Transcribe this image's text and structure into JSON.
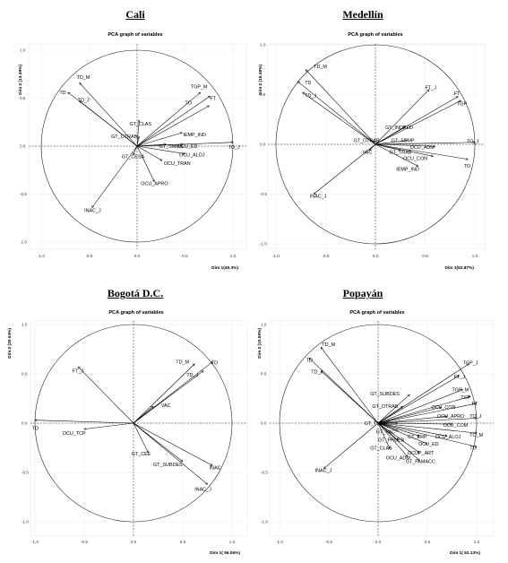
{
  "panels": [
    {
      "city": "Cali",
      "chart_data": {
        "type": "scatter",
        "title": "PCA graph of variables",
        "xlabel": "Dim 1(49.3%)",
        "ylabel": "Dim 2 (13.49%)",
        "xlim": [
          -1.0,
          1.0
        ],
        "ylim": [
          -1.0,
          1.0
        ],
        "ticks": [
          -1.0,
          -0.5,
          0.0,
          0.5,
          1.0
        ],
        "tick_labels": [
          "-1.0",
          "-0.5",
          "0.0",
          "0.5",
          "1.0"
        ],
        "vectors": [
          {
            "label": "TD_M",
            "x": -0.6,
            "y": 0.66,
            "lx": -0.63,
            "ly": 0.72
          },
          {
            "label": "TD",
            "x": -0.72,
            "y": 0.56,
            "lx": -0.81,
            "ly": 0.56
          },
          {
            "label": "TD_J",
            "x": -0.6,
            "y": 0.47,
            "lx": -0.62,
            "ly": 0.48
          },
          {
            "label": "TGP_M",
            "x": 0.66,
            "y": 0.56,
            "lx": 0.56,
            "ly": 0.62
          },
          {
            "label": "FT",
            "x": 0.76,
            "y": 0.52,
            "lx": 0.76,
            "ly": 0.5
          },
          {
            "label": "TO",
            "x": 0.75,
            "y": 0.42,
            "lx": 0.5,
            "ly": 0.45
          },
          {
            "label": "GT_CLAS",
            "x": 0.02,
            "y": 0.27,
            "lx": -0.08,
            "ly": 0.23
          },
          {
            "label": "IEMP_IND",
            "x": 0.47,
            "y": 0.14,
            "lx": 0.48,
            "ly": 0.12
          },
          {
            "label": "GT_OTRAB",
            "x": 0.02,
            "y": 0.1,
            "lx": -0.27,
            "ly": 0.1
          },
          {
            "label": "OCU_ED",
            "x": 0.48,
            "y": 0.02,
            "lx": 0.42,
            "ly": 0.0
          },
          {
            "label": "GT_SMMS",
            "x": 0.3,
            "y": 0.02,
            "lx": 0.23,
            "ly": 0.0
          },
          {
            "label": "OCU_ALOJ",
            "x": 0.5,
            "y": -0.08,
            "lx": 0.44,
            "ly": -0.09
          },
          {
            "label": "GT_CESA",
            "x": -0.04,
            "y": -0.09,
            "lx": -0.16,
            "ly": -0.11
          },
          {
            "label": "OCU_TRAN",
            "x": 0.26,
            "y": -0.15,
            "lx": 0.28,
            "ly": -0.18
          },
          {
            "label": "TO_J",
            "x": 1.0,
            "y": 0.04,
            "lx": 0.95,
            "ly": -0.01
          },
          {
            "label": "OCU_APRO",
            "x": 0.18,
            "y": -0.37,
            "lx": 0.04,
            "ly": -0.39
          },
          {
            "label": "INAC_J",
            "x": -0.47,
            "y": -0.64,
            "lx": -0.55,
            "ly": -0.67
          }
        ]
      }
    },
    {
      "city": "Medellín",
      "chart_data": {
        "type": "scatter",
        "title": "PCA graph of variables",
        "xlabel": "Dim 1(52.87%)",
        "ylabel": "Dim 2 (16.48%)",
        "xlim": [
          -1.0,
          1.0
        ],
        "ylim": [
          -1.0,
          1.0
        ],
        "ticks": [
          -1.0,
          -0.5,
          0.0,
          0.5,
          1.0
        ],
        "tick_labels": [
          "-1.0",
          "-0.5",
          "0.0",
          "0.5",
          "1.0"
        ],
        "vectors": [
          {
            "label": "TD_M",
            "x": -0.7,
            "y": 0.75,
            "lx": -0.62,
            "ly": 0.78
          },
          {
            "label": "TD",
            "x": -0.78,
            "y": 0.63,
            "lx": -0.71,
            "ly": 0.62
          },
          {
            "label": "TD_J",
            "x": -0.73,
            "y": 0.52,
            "lx": -0.71,
            "ly": 0.49
          },
          {
            "label": "FT_J",
            "x": 0.54,
            "y": 0.55,
            "lx": 0.5,
            "ly": 0.57
          },
          {
            "label": "FT",
            "x": 0.83,
            "y": 0.48,
            "lx": 0.79,
            "ly": 0.51
          },
          {
            "label": "TGP",
            "x": 0.86,
            "y": 0.44,
            "lx": 0.82,
            "ly": 0.41
          },
          {
            "label": "GT_INDEED",
            "x": 0.3,
            "y": 0.18,
            "lx": 0.1,
            "ly": 0.17
          },
          {
            "label": "GT_SEMP",
            "x": 0.32,
            "y": 0.04,
            "lx": 0.16,
            "ly": 0.04
          },
          {
            "label": "GT_OTRAB",
            "x": -0.02,
            "y": 0.04,
            "lx": -0.22,
            "ly": 0.04
          },
          {
            "label": "OCU_ADM",
            "x": 0.6,
            "y": -0.02,
            "lx": 0.35,
            "ly": -0.03
          },
          {
            "label": "TO_J",
            "x": 1.0,
            "y": 0.02,
            "lx": 0.92,
            "ly": 0.03
          },
          {
            "label": "VAC",
            "x": -0.06,
            "y": -0.06,
            "lx": -0.13,
            "ly": -0.08
          },
          {
            "label": "GT_TRAB",
            "x": 0.25,
            "y": -0.06,
            "lx": 0.14,
            "ly": -0.08
          },
          {
            "label": "OCU_CON",
            "x": 0.58,
            "y": -0.12,
            "lx": 0.28,
            "ly": -0.14
          },
          {
            "label": "TO",
            "x": 0.93,
            "y": -0.15,
            "lx": 0.89,
            "ly": -0.22
          },
          {
            "label": "IEMP_IND",
            "x": 0.43,
            "y": -0.22,
            "lx": 0.21,
            "ly": -0.25
          },
          {
            "label": "INAC_J",
            "x": -0.62,
            "y": -0.5,
            "lx": -0.66,
            "ly": -0.52
          }
        ]
      }
    },
    {
      "city": "Bogotá D.C.",
      "chart_data": {
        "type": "scatter",
        "title": "PCA graph of variables",
        "xlabel": "Dim 1( 56.06%)",
        "ylabel": "Dim 2 (20.04%)",
        "xlim": [
          -1.0,
          1.0
        ],
        "ylim": [
          -1.0,
          1.0
        ],
        "ticks": [
          -1.0,
          -0.5,
          0.0,
          0.5,
          1.0
        ],
        "tick_labels": [
          "-1.0",
          "-0.5",
          "0.0",
          "0.5",
          "1.0"
        ],
        "vectors": [
          {
            "label": "TD_M",
            "x": 0.62,
            "y": 0.6,
            "lx": 0.43,
            "ly": 0.62
          },
          {
            "label": "TD",
            "x": 0.8,
            "y": 0.62,
            "lx": 0.79,
            "ly": 0.61
          },
          {
            "label": "TD_J",
            "x": 0.71,
            "y": 0.53,
            "lx": 0.54,
            "ly": 0.49
          },
          {
            "label": "FT_J",
            "x": -0.56,
            "y": 0.57,
            "lx": -0.62,
            "ly": 0.53
          },
          {
            "label": "VAC",
            "x": 0.2,
            "y": 0.17,
            "lx": 0.28,
            "ly": 0.18
          },
          {
            "label": "TO",
            "x": -1.0,
            "y": 0.03,
            "lx": -1.03,
            "ly": -0.05
          },
          {
            "label": "OCU_TCP",
            "x": -0.5,
            "y": -0.06,
            "lx": -0.72,
            "ly": -0.1
          },
          {
            "label": "GT_CEE",
            "x": 0.15,
            "y": -0.3,
            "lx": -0.02,
            "ly": -0.31
          },
          {
            "label": "GT_SUBDES",
            "x": 0.5,
            "y": -0.39,
            "lx": 0.2,
            "ly": -0.42
          },
          {
            "label": "INAC",
            "x": 0.8,
            "y": -0.43,
            "lx": 0.77,
            "ly": -0.45
          },
          {
            "label": "INAC_J",
            "x": 0.75,
            "y": -0.62,
            "lx": 0.62,
            "ly": -0.67
          }
        ]
      }
    },
    {
      "city": "Popayán",
      "chart_data": {
        "type": "scatter",
        "title": "PCA graph of variables",
        "xlabel": "Dim 1( 52.13%)",
        "ylabel": "Dim 2 (10.50%)",
        "xlim": [
          -1.0,
          1.0
        ],
        "ylim": [
          -1.0,
          1.0
        ],
        "ticks": [
          -1.0,
          -0.5,
          0.0,
          0.5,
          1.0
        ],
        "tick_labels": [
          "-1.0",
          "-0.5",
          "0.0",
          "0.5",
          "1.0"
        ],
        "vectors": [
          {
            "label": "TD_M",
            "x": -0.58,
            "y": 0.77,
            "lx": -0.57,
            "ly": 0.8
          },
          {
            "label": "TD",
            "x": -0.7,
            "y": 0.66,
            "lx": -0.73,
            "ly": 0.64
          },
          {
            "label": "TD_J",
            "x": -0.58,
            "y": 0.53,
            "lx": -0.68,
            "ly": 0.52
          },
          {
            "label": "TGP_J",
            "x": 0.92,
            "y": 0.6,
            "lx": 0.86,
            "ly": 0.61
          },
          {
            "label": "FT_J",
            "x": 0.82,
            "y": 0.48,
            "lx": 0.77,
            "ly": 0.47
          },
          {
            "label": "GT_SUBDES",
            "x": 0.32,
            "y": 0.29,
            "lx": -0.08,
            "ly": 0.3
          },
          {
            "label": "TGP_M",
            "x": 0.86,
            "y": 0.34,
            "lx": 0.75,
            "ly": 0.34
          },
          {
            "label": "TGP",
            "x": 0.93,
            "y": 0.27,
            "lx": 0.84,
            "ly": 0.26
          },
          {
            "label": "GT_OTRAB",
            "x": 0.25,
            "y": 0.17,
            "lx": -0.06,
            "ly": 0.17
          },
          {
            "label": "FT",
            "x": 1.0,
            "y": 0.2,
            "lx": 0.95,
            "ly": 0.2
          },
          {
            "label": "OCU_CON",
            "x": 0.64,
            "y": 0.16,
            "lx": 0.54,
            "ly": 0.16
          },
          {
            "label": "OCU_APRO",
            "x": 0.7,
            "y": 0.07,
            "lx": 0.6,
            "ly": 0.07
          },
          {
            "label": "TO_J",
            "x": 1.0,
            "y": 0.05,
            "lx": 0.93,
            "ly": 0.07
          },
          {
            "label": "GT_TSEXP",
            "x": 0.2,
            "y": 0.0,
            "lx": -0.14,
            "ly": 0.0
          },
          {
            "label": "OCU_COM",
            "x": 0.75,
            "y": -0.01,
            "lx": 0.66,
            "ly": -0.02
          },
          {
            "label": "GT_VAC",
            "x": 0.2,
            "y": -0.08,
            "lx": -0.02,
            "ly": -0.09
          },
          {
            "label": "TO_M",
            "x": 1.0,
            "y": -0.1,
            "lx": 0.93,
            "ly": -0.12
          },
          {
            "label": "GT_ERP",
            "x": 0.42,
            "y": -0.13,
            "lx": 0.3,
            "ly": -0.14
          },
          {
            "label": "OCU_ALOJ",
            "x": 0.7,
            "y": -0.13,
            "lx": 0.58,
            "ly": -0.14
          },
          {
            "label": "GT_PRUEB",
            "x": 0.2,
            "y": -0.17,
            "lx": 0.0,
            "ly": -0.17
          },
          {
            "label": "OCU_ED",
            "x": 0.5,
            "y": -0.21,
            "lx": 0.41,
            "ly": -0.21
          },
          {
            "label": "GT_CLAS",
            "x": 0.12,
            "y": -0.26,
            "lx": -0.08,
            "ly": -0.25
          },
          {
            "label": "TO",
            "x": 1.0,
            "y": -0.24,
            "lx": 0.93,
            "ly": -0.25
          },
          {
            "label": "OCUP_ART",
            "x": 0.42,
            "y": -0.3,
            "lx": 0.3,
            "ly": -0.3
          },
          {
            "label": "OCU_ADM",
            "x": 0.3,
            "y": -0.34,
            "lx": 0.08,
            "ly": -0.35
          },
          {
            "label": "GT_FAMACC",
            "x": 0.42,
            "y": -0.38,
            "lx": 0.28,
            "ly": -0.39
          },
          {
            "label": "INAC_J",
            "x": -0.55,
            "y": -0.46,
            "lx": -0.64,
            "ly": -0.48
          }
        ]
      }
    }
  ]
}
